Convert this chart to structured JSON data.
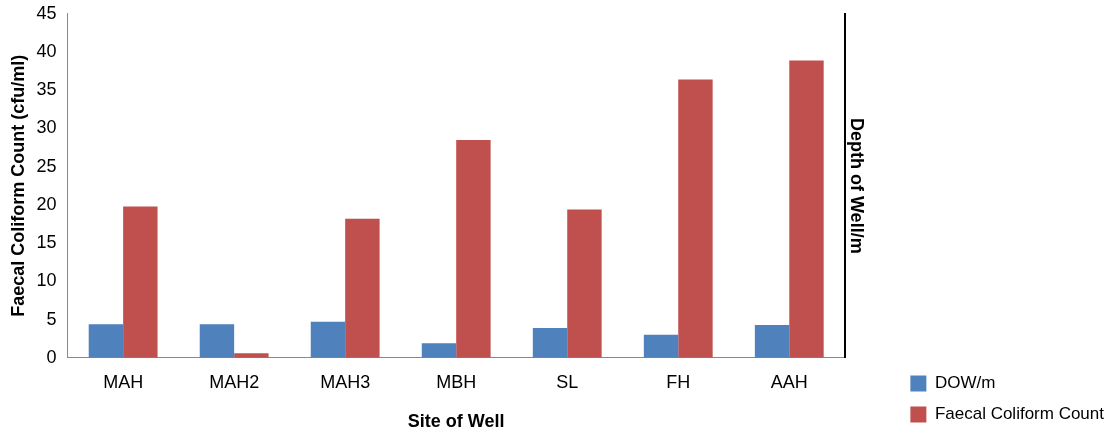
{
  "chart_data": {
    "type": "bar",
    "xlabel": "Site of Well",
    "ylabel": "Faecal Coliform Count (cfu/ml)",
    "y2label": "Depth of Well/m",
    "categories": [
      "MAH",
      "MAH2",
      "MAH3",
      "MBH",
      "SL",
      "FH",
      "AAH"
    ],
    "series": [
      {
        "name": "DOW/m",
        "color": "#4f81bd",
        "values": [
          4.4,
          4.4,
          4.7,
          1.9,
          3.9,
          3.0,
          4.3
        ]
      },
      {
        "name": "Faecal Coliform Count",
        "color": "#c0504d",
        "values": [
          19.8,
          0.6,
          18.2,
          28.5,
          19.4,
          36.4,
          38.9
        ]
      }
    ],
    "ylim": [
      0,
      45
    ],
    "yticks": [
      0,
      5,
      10,
      15,
      20,
      25,
      30,
      35,
      40,
      45
    ],
    "grid": false,
    "legend": "bottom right"
  }
}
